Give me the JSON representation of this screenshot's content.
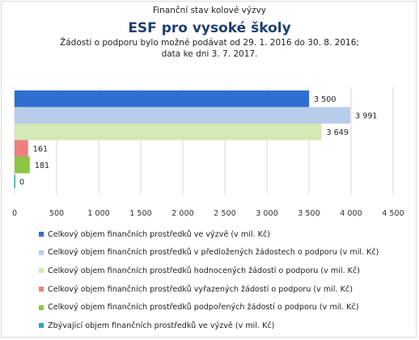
{
  "header": {
    "supertitle": "Finanční stav kolové výzvy",
    "title": "ESF pro vysoké školy",
    "subtitle_line1": "Žádosti o podporu bylo možné  podávat od 29. 1. 2016 do 30. 8. 2016;",
    "subtitle_line2": "data ke dni 3. 7. 2017."
  },
  "chart_data": {
    "type": "bar",
    "orientation": "horizontal",
    "title": "ESF pro vysoké školy",
    "xlim": [
      0,
      4500
    ],
    "xticks": [
      0,
      500,
      1000,
      1500,
      2000,
      2500,
      3000,
      3500,
      4000,
      4500
    ],
    "xtick_labels": [
      "0",
      "500",
      "1 000",
      "1 500",
      "2 000",
      "2 500",
      "3 000",
      "3 500",
      "4 000",
      "4 500"
    ],
    "grid": "vertical",
    "legend_position": "bottom",
    "series": [
      {
        "name": "Celkový objem finančních prostředků ve výzvě (v mil. Kč)",
        "value": 3500,
        "label": "3 500",
        "color": "#2e6fd1"
      },
      {
        "name": "Celkový objem finančních prostředků v předložených žádostech o podporu (v mil. Kč)",
        "value": 3991,
        "label": "3 991",
        "color": "#b8cdea"
      },
      {
        "name": "Celkový objem finančních prostředků hodnocených žádostí o podporu (v mil. Kč)",
        "value": 3649,
        "label": "3 649",
        "color": "#d3e8b5"
      },
      {
        "name": "Celkový objem finančních prostředků vyřazených žádostí o podporu (v mil. Kč)",
        "value": 161,
        "label": "161",
        "color": "#ef7f7f"
      },
      {
        "name": "Celkový objem finančních prostředků podpořených žádostí o podporu (v mil. Kč)",
        "value": 181,
        "label": "181",
        "color": "#8cc641"
      },
      {
        "name": "Zbývající objem finančních prostředků ve výzvě (v mil. Kč)",
        "value": 0,
        "label": "0",
        "color": "#2aa7b8"
      }
    ]
  }
}
